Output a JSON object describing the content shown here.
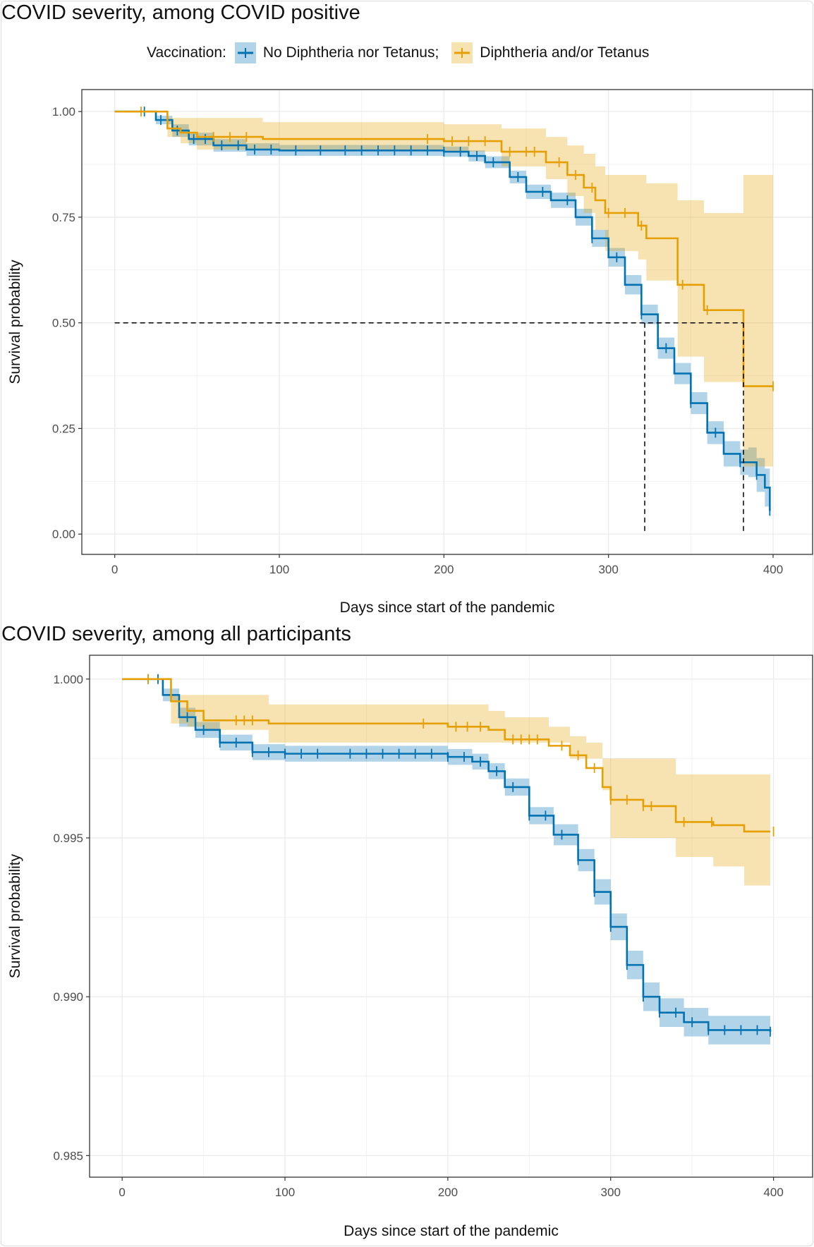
{
  "legend": {
    "title": "Vaccination:",
    "items": [
      {
        "label": "No Diphtheria nor Tetanus;",
        "color": "#0072B2"
      },
      {
        "label": "Diphtheria and/or Tetanus",
        "color": "#E69F00"
      }
    ]
  },
  "chart_data": [
    {
      "type": "line",
      "title": "COVID severity, among COVID positive",
      "xlabel": "Days since start of the pandemic",
      "ylabel": "Survival probability",
      "xlim": [
        -20,
        424
      ],
      "ylim": [
        -0.048,
        1.052
      ],
      "xticks": [
        0,
        100,
        200,
        300,
        400
      ],
      "xtick_labels": [
        "0",
        "100",
        "200",
        "300",
        "400"
      ],
      "yticks": [
        0,
        0.25,
        0.5,
        0.75,
        1.0
      ],
      "ytick_labels": [
        "0.00",
        "0.25",
        "0.50",
        "0.75",
        "1.00"
      ],
      "grid": true,
      "median_lines": {
        "y": 0.5,
        "x": [
          322,
          382
        ]
      },
      "series": [
        {
          "name": "No Diphtheria nor Tetanus",
          "color": "#0072B2",
          "x": [
            0,
            15,
            25,
            35,
            45,
            60,
            80,
            100,
            200,
            215,
            225,
            240,
            250,
            265,
            280,
            290,
            300,
            310,
            320,
            330,
            340,
            350,
            360,
            370,
            380,
            385,
            390,
            395,
            398
          ],
          "y": [
            1,
            1,
            0.98,
            0.955,
            0.935,
            0.92,
            0.91,
            0.908,
            0.905,
            0.895,
            0.88,
            0.845,
            0.81,
            0.79,
            0.75,
            0.7,
            0.655,
            0.59,
            0.52,
            0.44,
            0.38,
            0.31,
            0.24,
            0.19,
            0.17,
            0.17,
            0.14,
            0.11,
            0.055
          ],
          "lo": [
            1,
            1,
            0.97,
            0.94,
            0.92,
            0.905,
            0.895,
            0.895,
            0.893,
            0.882,
            0.866,
            0.83,
            0.793,
            0.772,
            0.73,
            0.68,
            0.633,
            0.567,
            0.497,
            0.415,
            0.355,
            0.284,
            0.213,
            0.16,
            0.14,
            0.135,
            0.1,
            0.065,
            0.0
          ],
          "hi": [
            1,
            1,
            0.99,
            0.97,
            0.95,
            0.935,
            0.925,
            0.921,
            0.917,
            0.908,
            0.894,
            0.86,
            0.827,
            0.808,
            0.77,
            0.72,
            0.677,
            0.613,
            0.543,
            0.465,
            0.405,
            0.336,
            0.267,
            0.22,
            0.2,
            0.205,
            0.18,
            0.155,
            0.11
          ],
          "censor_x": [
            18,
            28,
            38,
            48,
            55,
            65,
            75,
            85,
            95,
            110,
            125,
            140,
            150,
            160,
            170,
            180,
            190,
            200,
            210,
            220,
            230,
            245,
            260,
            275,
            290,
            305,
            320,
            335,
            350,
            365,
            380,
            390,
            398
          ]
        },
        {
          "name": "Diphtheria and/or Tetanus",
          "color": "#E69F00",
          "x": [
            0,
            32,
            40,
            50,
            90,
            200,
            235,
            262,
            275,
            285,
            292,
            298,
            318,
            323,
            342,
            358,
            382,
            400
          ],
          "y": [
            1,
            0.96,
            0.95,
            0.94,
            0.935,
            0.93,
            0.905,
            0.88,
            0.85,
            0.82,
            0.79,
            0.76,
            0.73,
            0.7,
            0.59,
            0.53,
            0.35,
            0.35
          ],
          "lo": [
            1,
            0.94,
            0.925,
            0.91,
            0.91,
            0.905,
            0.87,
            0.84,
            0.8,
            0.76,
            0.72,
            0.67,
            0.65,
            0.6,
            0.42,
            0.36,
            0.16,
            0.16
          ],
          "hi": [
            1,
            0.985,
            0.985,
            0.985,
            0.975,
            0.97,
            0.96,
            0.94,
            0.92,
            0.9,
            0.87,
            0.85,
            0.85,
            0.83,
            0.79,
            0.76,
            0.85,
            0.85
          ],
          "censor_x": [
            16,
            60,
            70,
            80,
            190,
            205,
            215,
            225,
            240,
            250,
            255,
            270,
            280,
            290,
            300,
            310,
            320,
            345,
            360,
            400
          ]
        }
      ]
    },
    {
      "type": "line",
      "title": "COVID severity, among all participants",
      "xlabel": "Days since start of the pandemic",
      "ylabel": "Survival probability",
      "xlim": [
        -20,
        424
      ],
      "ylim": [
        0.98432,
        1.00075
      ],
      "xticks": [
        0,
        100,
        200,
        300,
        400
      ],
      "xtick_labels": [
        "0",
        "100",
        "200",
        "300",
        "400"
      ],
      "yticks": [
        0.985,
        0.99,
        0.995,
        1.0
      ],
      "ytick_labels": [
        "0.985",
        "0.990",
        "0.995",
        "1.000"
      ],
      "grid": true,
      "series": [
        {
          "name": "No Diphtheria nor Tetanus",
          "color": "#0072B2",
          "x": [
            0,
            15,
            25,
            35,
            45,
            60,
            80,
            100,
            200,
            215,
            225,
            235,
            250,
            265,
            280,
            290,
            300,
            310,
            320,
            330,
            345,
            360,
            398
          ],
          "y": [
            1,
            1,
            0.9995,
            0.9988,
            0.9984,
            0.998,
            0.9977,
            0.99765,
            0.99755,
            0.9974,
            0.9971,
            0.9966,
            0.9957,
            0.9951,
            0.9943,
            0.9933,
            0.9922,
            0.991,
            0.99,
            0.9895,
            0.9892,
            0.98895,
            0.9889
          ],
          "lo": [
            1,
            1,
            0.9993,
            0.9985,
            0.99815,
            0.99775,
            0.99745,
            0.9974,
            0.9973,
            0.99715,
            0.99685,
            0.99633,
            0.99543,
            0.99477,
            0.99395,
            0.9929,
            0.99178,
            0.99055,
            0.98955,
            0.98905,
            0.98875,
            0.9885,
            0.9884
          ],
          "hi": [
            1,
            1,
            0.9997,
            0.9991,
            0.99865,
            0.99825,
            0.99795,
            0.9979,
            0.9978,
            0.99765,
            0.99735,
            0.99687,
            0.99597,
            0.99543,
            0.99465,
            0.9937,
            0.99262,
            0.99145,
            0.99045,
            0.98995,
            0.98965,
            0.9894,
            0.9894
          ],
          "censor_x": [
            16,
            22,
            30,
            40,
            50,
            60,
            70,
            80,
            90,
            100,
            110,
            120,
            140,
            150,
            160,
            170,
            180,
            190,
            200,
            210,
            220,
            230,
            240,
            250,
            260,
            270,
            280,
            290,
            300,
            310,
            320,
            330,
            340,
            350,
            360,
            370,
            380,
            390,
            398
          ]
        },
        {
          "name": "Diphtheria and/or Tetanus",
          "color": "#E69F00",
          "x": [
            0,
            30,
            40,
            50,
            90,
            200,
            225,
            235,
            262,
            275,
            285,
            295,
            300,
            320,
            340,
            363,
            382,
            398
          ],
          "y": [
            1,
            0.9993,
            0.999,
            0.9987,
            0.9986,
            0.9985,
            0.9984,
            0.9981,
            0.9979,
            0.9976,
            0.9972,
            0.9966,
            0.9962,
            0.996,
            0.9955,
            0.9954,
            0.9952,
            0.9952
          ],
          "lo": [
            1,
            0.9986,
            0.9985,
            0.9984,
            0.998,
            0.998,
            0.998,
            0.998,
            0.998,
            0.9975,
            0.9975,
            0.9965,
            0.995,
            0.995,
            0.9944,
            0.9941,
            0.9935,
            0.9935
          ],
          "hi": [
            1,
            0.9995,
            0.9995,
            0.9995,
            0.9992,
            0.9992,
            0.999,
            0.9988,
            0.9985,
            0.9982,
            0.998,
            0.9975,
            0.9975,
            0.9975,
            0.997,
            0.997,
            0.997,
            0.997
          ],
          "censor_x": [
            16,
            70,
            75,
            80,
            185,
            205,
            212,
            220,
            240,
            245,
            250,
            255,
            270,
            280,
            290,
            300,
            310,
            320,
            325,
            345,
            362,
            400
          ]
        }
      ]
    }
  ]
}
